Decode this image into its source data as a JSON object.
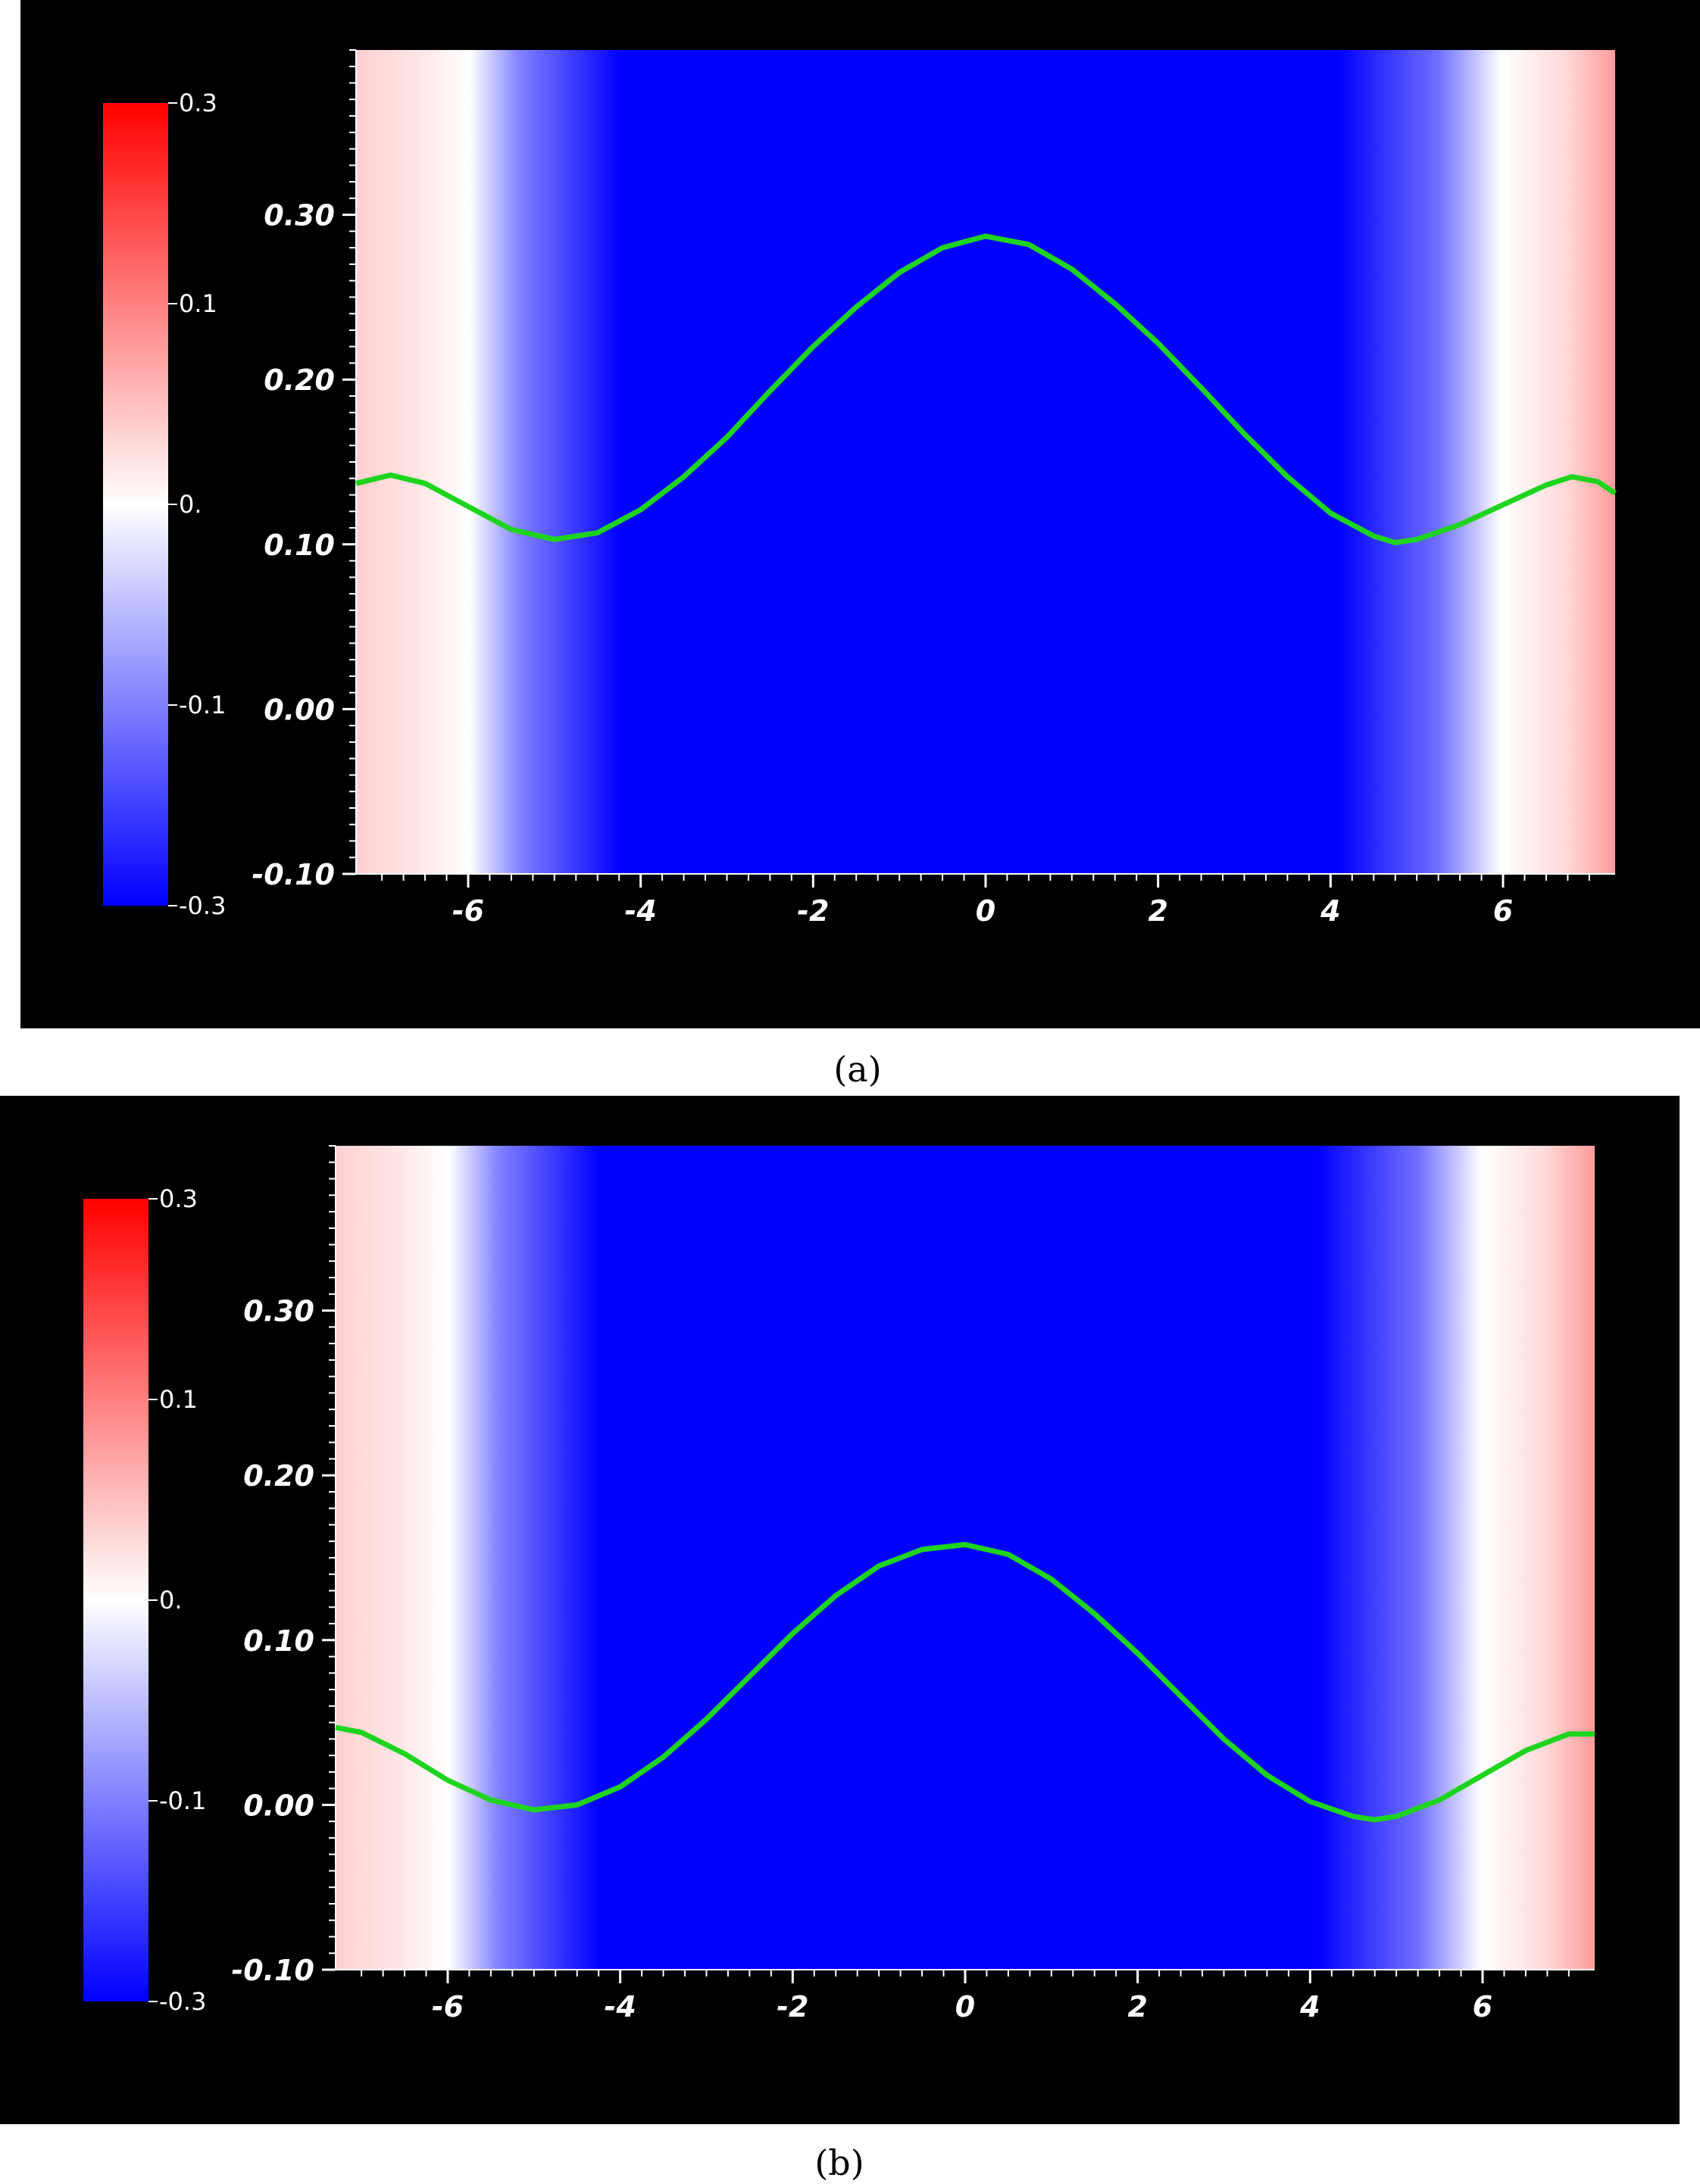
{
  "colors": {
    "background": "#000000",
    "field_low": "#0000ff",
    "field_mid": "#ffffff",
    "field_high": "#ff0000",
    "curve": "#1ed41e",
    "text": "#ffffff"
  },
  "chart_data": [
    {
      "type": "line",
      "caption": "(a)",
      "xlim": [
        -7.3,
        7.3
      ],
      "ylim": [
        -0.1,
        0.4
      ],
      "x_ticks": [
        "-6",
        "-4",
        "-2",
        "0",
        "2",
        "4",
        "6"
      ],
      "y_ticks": [
        "-0.10",
        "0.00",
        "0.10",
        "0.20",
        "0.30"
      ],
      "colorbar": {
        "labels": [
          "0.3",
          "0.1",
          "0.",
          "-0.1",
          "-0.3"
        ],
        "range": [
          -0.3,
          0.3
        ]
      },
      "series": [
        {
          "x": [
            -7.3,
            -6.9,
            -6.5,
            -6.0,
            -5.5,
            -5.0,
            -4.5,
            -4.0,
            -3.5,
            -3.0,
            -2.5,
            -2.0,
            -1.5,
            -1.0,
            -0.5,
            0.0,
            0.5,
            1.0,
            1.5,
            2.0,
            2.5,
            3.0,
            3.5,
            4.0,
            4.5,
            4.75,
            5.0,
            5.5,
            6.0,
            6.5,
            6.8,
            7.1,
            7.3
          ],
          "y": [
            0.137,
            0.142,
            0.137,
            0.123,
            0.109,
            0.103,
            0.107,
            0.121,
            0.141,
            0.165,
            0.193,
            0.22,
            0.244,
            0.265,
            0.28,
            0.287,
            0.282,
            0.267,
            0.246,
            0.222,
            0.195,
            0.167,
            0.141,
            0.119,
            0.105,
            0.101,
            0.103,
            0.112,
            0.124,
            0.136,
            0.141,
            0.138,
            0.131
          ]
        }
      ]
    },
    {
      "type": "line",
      "caption": "(b)",
      "xlim": [
        -7.3,
        7.3
      ],
      "ylim": [
        -0.1,
        0.4
      ],
      "x_ticks": [
        "-6",
        "-4",
        "-2",
        "0",
        "2",
        "4",
        "6"
      ],
      "y_ticks": [
        "-0.10",
        "0.00",
        "0.10",
        "0.20",
        "0.30"
      ],
      "colorbar": {
        "labels": [
          "0.3",
          "0.1",
          "0.",
          "-0.1",
          "-0.3"
        ],
        "range": [
          -0.3,
          0.3
        ]
      },
      "series": [
        {
          "x": [
            -7.3,
            -7.0,
            -6.5,
            -6.0,
            -5.5,
            -5.0,
            -4.5,
            -4.0,
            -3.5,
            -3.0,
            -2.5,
            -2.0,
            -1.5,
            -1.0,
            -0.5,
            0.0,
            0.5,
            1.0,
            1.5,
            2.0,
            2.5,
            3.0,
            3.5,
            4.0,
            4.5,
            4.75,
            5.0,
            5.5,
            6.0,
            6.5,
            7.0,
            7.3
          ],
          "y": [
            0.047,
            0.044,
            0.031,
            0.015,
            0.003,
            -0.003,
            0.0,
            0.011,
            0.029,
            0.052,
            0.078,
            0.104,
            0.127,
            0.145,
            0.155,
            0.158,
            0.152,
            0.137,
            0.116,
            0.092,
            0.066,
            0.04,
            0.018,
            0.002,
            -0.007,
            -0.009,
            -0.007,
            0.003,
            0.018,
            0.033,
            0.043,
            0.043
          ]
        }
      ]
    }
  ]
}
